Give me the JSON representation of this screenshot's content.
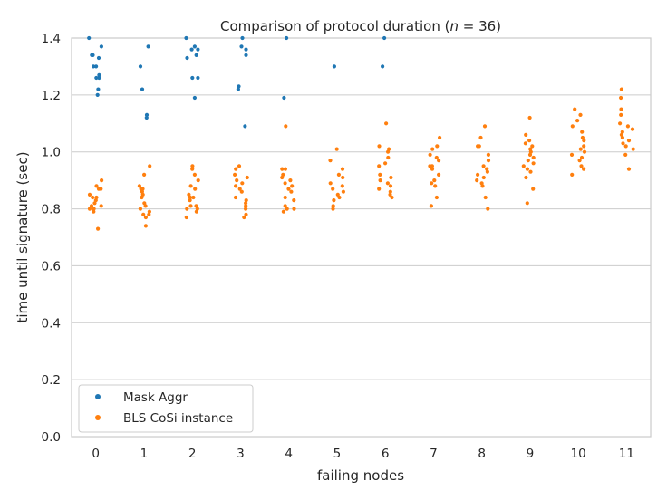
{
  "chart_data": {
    "type": "scatter",
    "title": "Comparison of protocol duration (n = 36)",
    "title_parts": {
      "prefix": "Comparison of protocol duration (",
      "var": "n",
      "suffix": " = 36)"
    },
    "xlabel": "failing nodes",
    "ylabel": "time until signature (sec)",
    "categories": [
      "0",
      "1",
      "2",
      "3",
      "4",
      "5",
      "6",
      "7",
      "8",
      "9",
      "10",
      "11"
    ],
    "ylim": [
      0.0,
      1.4
    ],
    "yticks": [
      "0.0",
      "0.2",
      "0.4",
      "0.6",
      "0.8",
      "1.0",
      "1.2",
      "1.4"
    ],
    "grid": true,
    "legend_position": "bottom-left",
    "series": [
      {
        "name": "Mask Aggr",
        "color": "#1f77b4",
        "points": [
          [
            0,
            1.4
          ],
          [
            0,
            1.37
          ],
          [
            0,
            1.34
          ],
          [
            0,
            1.34
          ],
          [
            0,
            1.33
          ],
          [
            0,
            1.3
          ],
          [
            0,
            1.3
          ],
          [
            0,
            1.27
          ],
          [
            0,
            1.26
          ],
          [
            0,
            1.26
          ],
          [
            0,
            1.22
          ],
          [
            0,
            1.2
          ],
          [
            1,
            1.37
          ],
          [
            1,
            1.3
          ],
          [
            1,
            1.22
          ],
          [
            1,
            1.13
          ],
          [
            1,
            1.12
          ],
          [
            2,
            1.4
          ],
          [
            2,
            1.37
          ],
          [
            2,
            1.36
          ],
          [
            2,
            1.36
          ],
          [
            2,
            1.34
          ],
          [
            2,
            1.33
          ],
          [
            2,
            1.26
          ],
          [
            2,
            1.26
          ],
          [
            2,
            1.19
          ],
          [
            3,
            1.4
          ],
          [
            3,
            1.37
          ],
          [
            3,
            1.36
          ],
          [
            3,
            1.34
          ],
          [
            3,
            1.23
          ],
          [
            3,
            1.22
          ],
          [
            3,
            1.09
          ],
          [
            4,
            1.4
          ],
          [
            4,
            1.19
          ],
          [
            5,
            1.3
          ],
          [
            6,
            1.4
          ],
          [
            6,
            1.3
          ]
        ]
      },
      {
        "name": "BLS CoSi instance",
        "color": "#ff7f0e",
        "points": [
          [
            0,
            0.9
          ],
          [
            0,
            0.88
          ],
          [
            0,
            0.87
          ],
          [
            0,
            0.87
          ],
          [
            0,
            0.85
          ],
          [
            0,
            0.84
          ],
          [
            0,
            0.84
          ],
          [
            0,
            0.83
          ],
          [
            0,
            0.82
          ],
          [
            0,
            0.81
          ],
          [
            0,
            0.81
          ],
          [
            0,
            0.8
          ],
          [
            0,
            0.8
          ],
          [
            0,
            0.79
          ],
          [
            0,
            0.73
          ],
          [
            1,
            0.95
          ],
          [
            1,
            0.92
          ],
          [
            1,
            0.88
          ],
          [
            1,
            0.87
          ],
          [
            1,
            0.87
          ],
          [
            1,
            0.86
          ],
          [
            1,
            0.85
          ],
          [
            1,
            0.84
          ],
          [
            1,
            0.82
          ],
          [
            1,
            0.81
          ],
          [
            1,
            0.8
          ],
          [
            1,
            0.79
          ],
          [
            1,
            0.78
          ],
          [
            1,
            0.78
          ],
          [
            1,
            0.77
          ],
          [
            1,
            0.74
          ],
          [
            2,
            0.95
          ],
          [
            2,
            0.94
          ],
          [
            2,
            0.92
          ],
          [
            2,
            0.9
          ],
          [
            2,
            0.88
          ],
          [
            2,
            0.87
          ],
          [
            2,
            0.85
          ],
          [
            2,
            0.84
          ],
          [
            2,
            0.84
          ],
          [
            2,
            0.83
          ],
          [
            2,
            0.81
          ],
          [
            2,
            0.81
          ],
          [
            2,
            0.8
          ],
          [
            2,
            0.8
          ],
          [
            2,
            0.79
          ],
          [
            2,
            0.77
          ],
          [
            3,
            0.95
          ],
          [
            3,
            0.94
          ],
          [
            3,
            0.92
          ],
          [
            3,
            0.91
          ],
          [
            3,
            0.9
          ],
          [
            3,
            0.89
          ],
          [
            3,
            0.88
          ],
          [
            3,
            0.87
          ],
          [
            3,
            0.86
          ],
          [
            3,
            0.84
          ],
          [
            3,
            0.83
          ],
          [
            3,
            0.82
          ],
          [
            3,
            0.81
          ],
          [
            3,
            0.8
          ],
          [
            3,
            0.78
          ],
          [
            3,
            0.77
          ],
          [
            4,
            1.09
          ],
          [
            4,
            0.94
          ],
          [
            4,
            0.94
          ],
          [
            4,
            0.92
          ],
          [
            4,
            0.91
          ],
          [
            4,
            0.9
          ],
          [
            4,
            0.89
          ],
          [
            4,
            0.88
          ],
          [
            4,
            0.87
          ],
          [
            4,
            0.86
          ],
          [
            4,
            0.84
          ],
          [
            4,
            0.83
          ],
          [
            4,
            0.81
          ],
          [
            4,
            0.8
          ],
          [
            4,
            0.8
          ],
          [
            4,
            0.79
          ],
          [
            5,
            1.01
          ],
          [
            5,
            0.97
          ],
          [
            5,
            0.94
          ],
          [
            5,
            0.92
          ],
          [
            5,
            0.91
          ],
          [
            5,
            0.89
          ],
          [
            5,
            0.88
          ],
          [
            5,
            0.87
          ],
          [
            5,
            0.86
          ],
          [
            5,
            0.85
          ],
          [
            5,
            0.84
          ],
          [
            5,
            0.83
          ],
          [
            5,
            0.81
          ],
          [
            5,
            0.8
          ],
          [
            6,
            1.1
          ],
          [
            6,
            1.02
          ],
          [
            6,
            1.01
          ],
          [
            6,
            1.0
          ],
          [
            6,
            0.98
          ],
          [
            6,
            0.96
          ],
          [
            6,
            0.95
          ],
          [
            6,
            0.92
          ],
          [
            6,
            0.91
          ],
          [
            6,
            0.9
          ],
          [
            6,
            0.89
          ],
          [
            6,
            0.88
          ],
          [
            6,
            0.87
          ],
          [
            6,
            0.86
          ],
          [
            6,
            0.85
          ],
          [
            6,
            0.84
          ],
          [
            7,
            1.05
          ],
          [
            7,
            1.02
          ],
          [
            7,
            1.01
          ],
          [
            7,
            0.99
          ],
          [
            7,
            0.98
          ],
          [
            7,
            0.97
          ],
          [
            7,
            0.95
          ],
          [
            7,
            0.95
          ],
          [
            7,
            0.94
          ],
          [
            7,
            0.92
          ],
          [
            7,
            0.9
          ],
          [
            7,
            0.89
          ],
          [
            7,
            0.88
          ],
          [
            7,
            0.84
          ],
          [
            7,
            0.81
          ],
          [
            8,
            1.09
          ],
          [
            8,
            1.05
          ],
          [
            8,
            1.02
          ],
          [
            8,
            1.02
          ],
          [
            8,
            0.99
          ],
          [
            8,
            0.97
          ],
          [
            8,
            0.95
          ],
          [
            8,
            0.94
          ],
          [
            8,
            0.93
          ],
          [
            8,
            0.92
          ],
          [
            8,
            0.91
          ],
          [
            8,
            0.9
          ],
          [
            8,
            0.89
          ],
          [
            8,
            0.88
          ],
          [
            8,
            0.84
          ],
          [
            8,
            0.8
          ],
          [
            9,
            1.12
          ],
          [
            9,
            1.06
          ],
          [
            9,
            1.04
          ],
          [
            9,
            1.03
          ],
          [
            9,
            1.02
          ],
          [
            9,
            1.01
          ],
          [
            9,
            1.0
          ],
          [
            9,
            0.99
          ],
          [
            9,
            0.98
          ],
          [
            9,
            0.97
          ],
          [
            9,
            0.96
          ],
          [
            9,
            0.95
          ],
          [
            9,
            0.94
          ],
          [
            9,
            0.93
          ],
          [
            9,
            0.91
          ],
          [
            9,
            0.87
          ],
          [
            9,
            0.82
          ],
          [
            10,
            1.15
          ],
          [
            10,
            1.13
          ],
          [
            10,
            1.11
          ],
          [
            10,
            1.09
          ],
          [
            10,
            1.07
          ],
          [
            10,
            1.05
          ],
          [
            10,
            1.04
          ],
          [
            10,
            1.02
          ],
          [
            10,
            1.01
          ],
          [
            10,
            1.0
          ],
          [
            10,
            0.99
          ],
          [
            10,
            0.98
          ],
          [
            10,
            0.97
          ],
          [
            10,
            0.95
          ],
          [
            10,
            0.94
          ],
          [
            10,
            0.92
          ],
          [
            11,
            1.22
          ],
          [
            11,
            1.19
          ],
          [
            11,
            1.15
          ],
          [
            11,
            1.13
          ],
          [
            11,
            1.1
          ],
          [
            11,
            1.09
          ],
          [
            11,
            1.08
          ],
          [
            11,
            1.07
          ],
          [
            11,
            1.06
          ],
          [
            11,
            1.05
          ],
          [
            11,
            1.04
          ],
          [
            11,
            1.03
          ],
          [
            11,
            1.02
          ],
          [
            11,
            1.01
          ],
          [
            11,
            0.99
          ],
          [
            11,
            0.94
          ]
        ]
      }
    ]
  }
}
